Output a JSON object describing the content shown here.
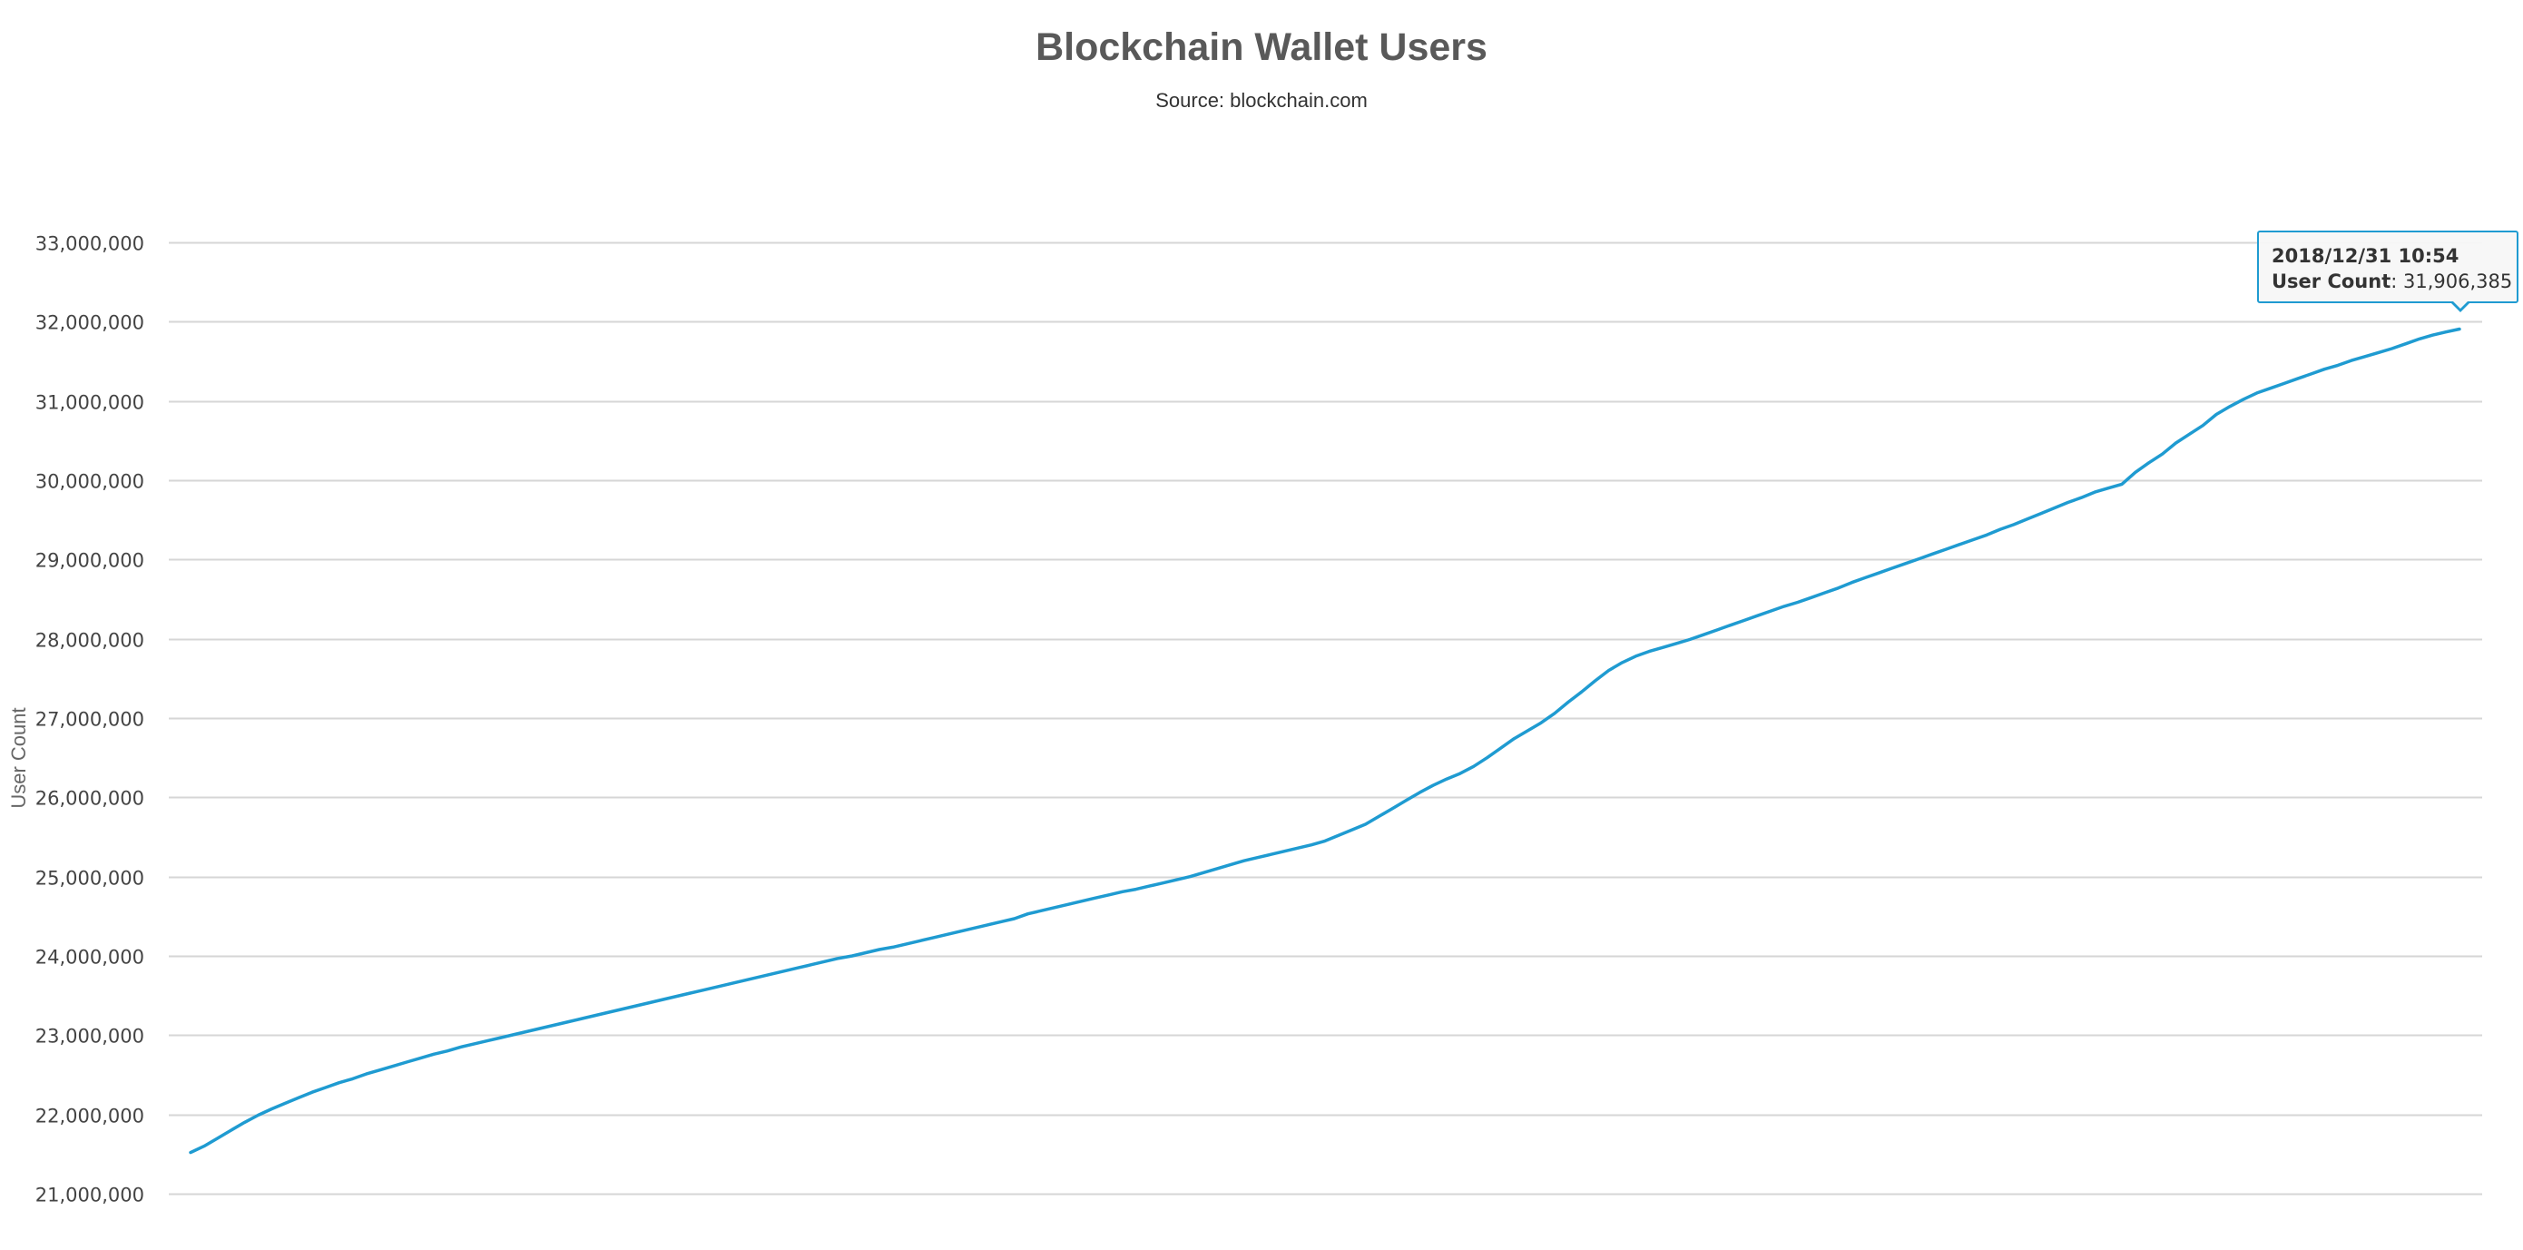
{
  "chart_data": {
    "type": "line",
    "title": "Blockchain Wallet Users",
    "subtitle": "Source: blockchain.com",
    "xlabel": "",
    "ylabel": "User Count",
    "ylim": [
      21000000,
      33000000
    ],
    "yticks": [
      21000000,
      22000000,
      23000000,
      24000000,
      25000000,
      26000000,
      27000000,
      28000000,
      29000000,
      30000000,
      31000000,
      32000000,
      33000000
    ],
    "ytick_labels": [
      "21,000,000",
      "22,000,000",
      "23,000,000",
      "24,000,000",
      "25,000,000",
      "26,000,000",
      "27,000,000",
      "28,000,000",
      "29,000,000",
      "30,000,000",
      "31,000,000",
      "32,000,000",
      "33,000,000"
    ],
    "grid": true,
    "legend": "none",
    "series": [
      {
        "color": "#1f9bd1",
        "values": [
          21520000,
          21600000,
          21700000,
          21800000,
          21900000,
          21990000,
          22070000,
          22140000,
          22210000,
          22280000,
          22340000,
          22400000,
          22450000,
          22510000,
          22560000,
          22610000,
          22660000,
          22710000,
          22760000,
          22800000,
          22850000,
          22890000,
          22930000,
          22970000,
          23010000,
          23050000,
          23090000,
          23130000,
          23170000,
          23210000,
          23250000,
          23290000,
          23330000,
          23370000,
          23410000,
          23450000,
          23490000,
          23530000,
          23570000,
          23610000,
          23650000,
          23690000,
          23730000,
          23770000,
          23810000,
          23850000,
          23890000,
          23930000,
          23970000,
          24000000,
          24040000,
          24080000,
          24110000,
          24150000,
          24190000,
          24230000,
          24270000,
          24310000,
          24350000,
          24390000,
          24430000,
          24470000,
          24530000,
          24570000,
          24610000,
          24650000,
          24690000,
          24730000,
          24770000,
          24810000,
          24840000,
          24880000,
          24920000,
          24960000,
          25000000,
          25050000,
          25100000,
          25150000,
          25200000,
          25240000,
          25280000,
          25320000,
          25360000,
          25400000,
          25450000,
          25520000,
          25590000,
          25660000,
          25760000,
          25860000,
          25960000,
          26060000,
          26150000,
          26230000,
          26300000,
          26390000,
          26500000,
          26620000,
          26740000,
          26840000,
          26940000,
          27060000,
          27200000,
          27330000,
          27470000,
          27600000,
          27700000,
          27780000,
          27840000,
          27890000,
          27940000,
          27990000,
          28050000,
          28110000,
          28170000,
          28230000,
          28290000,
          28350000,
          28410000,
          28460000,
          28520000,
          28580000,
          28640000,
          28710000,
          28770000,
          28830000,
          28890000,
          28950000,
          29010000,
          29070000,
          29130000,
          29190000,
          29250000,
          29310000,
          29380000,
          29440000,
          29510000,
          29580000,
          29650000,
          29720000,
          29780000,
          29850000,
          29900000,
          29950000,
          30100000,
          30220000,
          30330000,
          30470000,
          30580000,
          30690000,
          30830000,
          30930000,
          31020000,
          31100000,
          31160000,
          31220000,
          31280000,
          31340000,
          31400000,
          31450000,
          31510000,
          31560000,
          31610000,
          31660000,
          31720000,
          31780000,
          31830000,
          31870000,
          31906385
        ]
      }
    ]
  },
  "tooltip": {
    "date": "2018/12/31 10:54",
    "label": "User Count",
    "separator": ": ",
    "value": "31,906,385"
  }
}
